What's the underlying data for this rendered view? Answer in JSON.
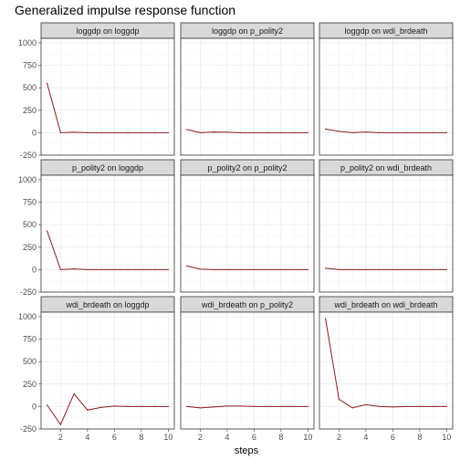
{
  "chart_data": {
    "type": "line",
    "title": "Generalized impulse response function",
    "xlabel": "steps",
    "ylabel": "",
    "x": [
      1,
      2,
      3,
      4,
      5,
      6,
      7,
      8,
      9,
      10
    ],
    "xticks": [
      2,
      4,
      6,
      8,
      10
    ],
    "yticks": [
      -250,
      0,
      250,
      500,
      750,
      1000
    ],
    "ylim": [
      -250,
      1050
    ],
    "xlim": [
      0.55,
      10.45
    ],
    "grid": true,
    "line_color": "#8b1a1a",
    "facets": [
      {
        "label": "loggdp on loggdp",
        "values": [
          550,
          0,
          5,
          0,
          0,
          0,
          0,
          0,
          0,
          0
        ]
      },
      {
        "label": "loggdp on p_polity2",
        "values": [
          35,
          0,
          8,
          5,
          0,
          0,
          0,
          0,
          0,
          0
        ]
      },
      {
        "label": "loggdp on wdi_brdeath",
        "values": [
          40,
          15,
          0,
          8,
          0,
          0,
          0,
          0,
          0,
          0
        ]
      },
      {
        "label": "p_polity2 on loggdp",
        "values": [
          430,
          0,
          8,
          0,
          0,
          0,
          0,
          0,
          0,
          0
        ]
      },
      {
        "label": "p_polity2 on p_polity2",
        "values": [
          40,
          5,
          0,
          0,
          0,
          0,
          0,
          0,
          0,
          0
        ]
      },
      {
        "label": "p_polity2 on wdi_brdeath",
        "values": [
          15,
          0,
          0,
          0,
          0,
          0,
          0,
          0,
          0,
          0
        ]
      },
      {
        "label": "wdi_brdeath on loggdp",
        "values": [
          15,
          -200,
          140,
          -40,
          -10,
          5,
          0,
          0,
          0,
          0
        ]
      },
      {
        "label": "wdi_brdeath on p_polity2",
        "values": [
          0,
          -15,
          -5,
          5,
          5,
          0,
          0,
          0,
          0,
          0
        ]
      },
      {
        "label": "wdi_brdeath on wdi_brdeath",
        "values": [
          980,
          80,
          -15,
          20,
          0,
          -5,
          0,
          0,
          0,
          0
        ]
      }
    ]
  }
}
